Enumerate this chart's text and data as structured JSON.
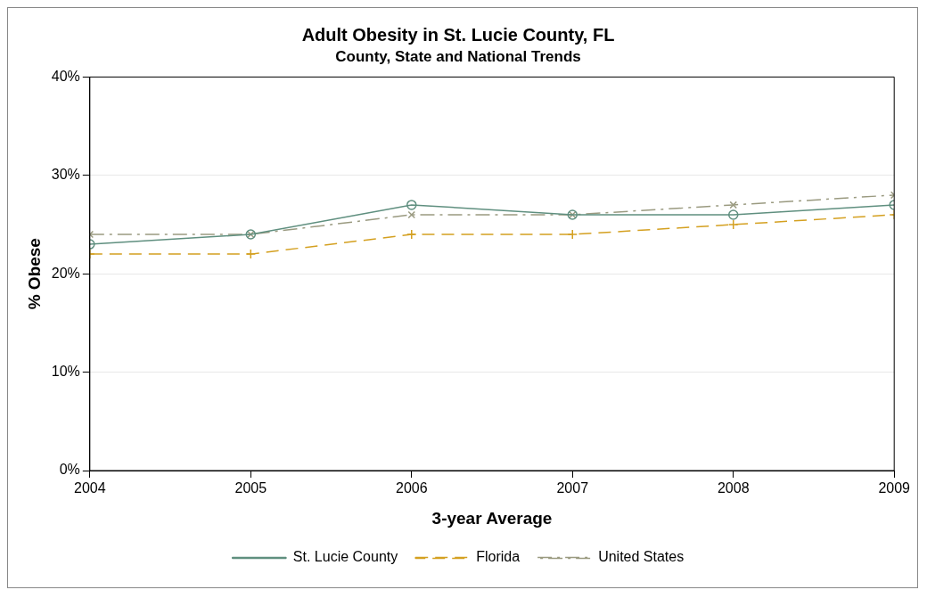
{
  "chart_data": {
    "type": "line",
    "title": "Adult Obesity in St. Lucie County, FL",
    "subtitle": "County, State and National Trends",
    "xlabel": "3-year Average",
    "ylabel": "% Obese",
    "x": [
      2004,
      2005,
      2006,
      2007,
      2008,
      2009
    ],
    "xlim": [
      2004,
      2009
    ],
    "xticks": [
      2004,
      2005,
      2006,
      2007,
      2008,
      2009
    ],
    "ylim": [
      0,
      40
    ],
    "yticks": [
      {
        "value": 0,
        "label": "0%"
      },
      {
        "value": 10,
        "label": "10%"
      },
      {
        "value": 20,
        "label": "20%"
      },
      {
        "value": 30,
        "label": "30%"
      },
      {
        "value": 40,
        "label": "40%"
      }
    ],
    "grid": "y",
    "legend": "bottom",
    "series": [
      {
        "name": "St. Lucie County",
        "color": "#5f8f7f",
        "values": [
          23,
          24,
          27,
          26,
          26,
          27
        ],
        "marker": "circle",
        "line_style": "solid"
      },
      {
        "name": "Florida",
        "color": "#d4a020",
        "values": [
          22,
          22,
          24,
          24,
          25,
          26
        ],
        "marker": "plus",
        "line_style": "dashed"
      },
      {
        "name": "United States",
        "color": "#9a9a80",
        "values": [
          24,
          24,
          26,
          26,
          27,
          28
        ],
        "marker": "cross",
        "line_style": "dashdot"
      }
    ]
  }
}
